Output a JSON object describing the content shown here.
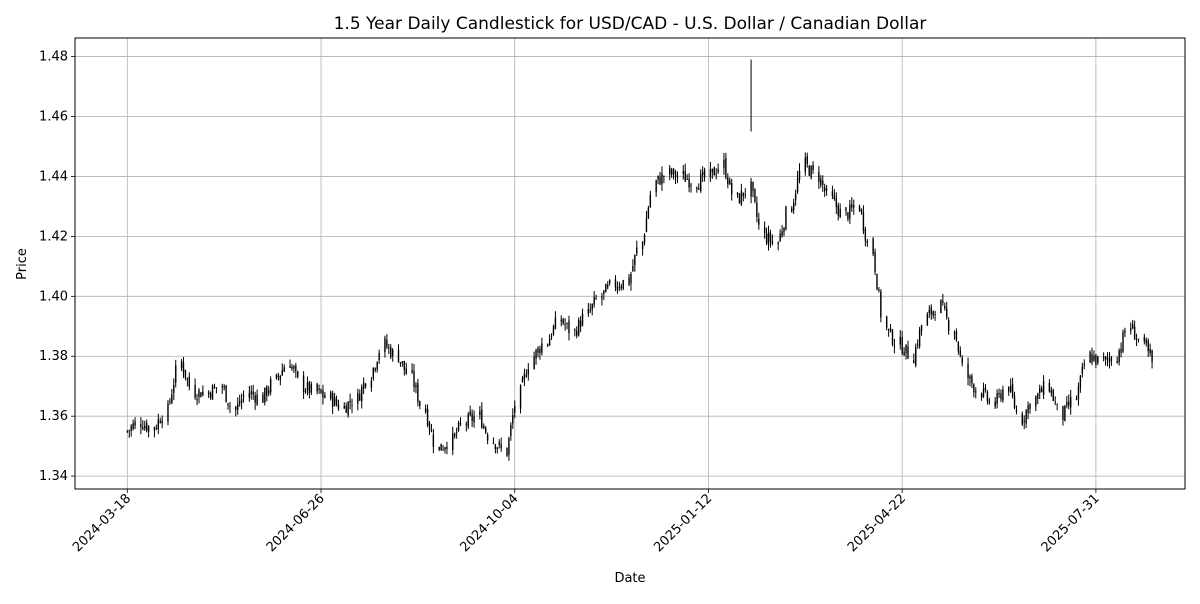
{
  "chart_data": {
    "type": "candlestick",
    "title": "1.5 Year Daily Candlestick for USD/CAD - U.S. Dollar / Canadian Dollar",
    "xlabel": "Date",
    "ylabel": "Price",
    "x_ticks": [
      "2024-03-18",
      "2024-06-26",
      "2024-10-04",
      "2025-01-12",
      "2025-04-22",
      "2025-07-31"
    ],
    "y_ticks": [
      "1.34",
      "1.36",
      "1.38",
      "1.40",
      "1.42",
      "1.44",
      "1.46",
      "1.48"
    ],
    "xlim": [
      "2024-02-20",
      "2025-09-15"
    ],
    "ylim": [
      1.3357,
      1.4862
    ],
    "grid": true,
    "colors": {
      "candle": "#000000",
      "grid": "#b0b0b0"
    },
    "series": {
      "name": "",
      "date_weekly": [
        "2024-03-18",
        "2024-03-25",
        "2024-04-01",
        "2024-04-08",
        "2024-04-15",
        "2024-04-22",
        "2024-04-29",
        "2024-05-06",
        "2024-05-13",
        "2024-05-20",
        "2024-05-27",
        "2024-06-03",
        "2024-06-10",
        "2024-06-17",
        "2024-06-24",
        "2024-07-01",
        "2024-07-08",
        "2024-07-15",
        "2024-07-22",
        "2024-07-29",
        "2024-08-05",
        "2024-08-12",
        "2024-08-19",
        "2024-08-26",
        "2024-09-02",
        "2024-09-09",
        "2024-09-16",
        "2024-09-23",
        "2024-09-30",
        "2024-10-07",
        "2024-10-14",
        "2024-10-21",
        "2024-10-28",
        "2024-11-04",
        "2024-11-11",
        "2024-11-18",
        "2024-11-25",
        "2024-12-02",
        "2024-12-09",
        "2024-12-16",
        "2024-12-23",
        "2024-12-30",
        "2025-01-06",
        "2025-01-13",
        "2025-01-20",
        "2025-01-27",
        "2025-02-03",
        "2025-02-10",
        "2025-02-17",
        "2025-02-24",
        "2025-03-03",
        "2025-03-10",
        "2025-03-17",
        "2025-03-24",
        "2025-03-31",
        "2025-04-07",
        "2025-04-14",
        "2025-04-21",
        "2025-04-28",
        "2025-05-05",
        "2025-05-12",
        "2025-05-19",
        "2025-05-26",
        "2025-06-02",
        "2025-06-09",
        "2025-06-16",
        "2025-06-23",
        "2025-06-30",
        "2025-07-07",
        "2025-07-14",
        "2025-07-21",
        "2025-07-28",
        "2025-08-04",
        "2025-08-11",
        "2025-08-18",
        "2025-08-25",
        "2025-09-01"
      ],
      "close_weekly": [
        1.355,
        1.358,
        1.356,
        1.362,
        1.378,
        1.368,
        1.368,
        1.37,
        1.362,
        1.368,
        1.366,
        1.372,
        1.378,
        1.37,
        1.368,
        1.366,
        1.363,
        1.366,
        1.374,
        1.384,
        1.38,
        1.373,
        1.362,
        1.349,
        1.352,
        1.358,
        1.36,
        1.352,
        1.348,
        1.368,
        1.38,
        1.385,
        1.392,
        1.388,
        1.394,
        1.4,
        1.404,
        1.405,
        1.418,
        1.438,
        1.441,
        1.44,
        1.438,
        1.44,
        1.444,
        1.432,
        1.436,
        1.42,
        1.418,
        1.43,
        1.444,
        1.44,
        1.432,
        1.427,
        1.43,
        1.415,
        1.389,
        1.384,
        1.38,
        1.393,
        1.397,
        1.389,
        1.373,
        1.368,
        1.364,
        1.37,
        1.359,
        1.366,
        1.37,
        1.36,
        1.366,
        1.38,
        1.378,
        1.38,
        1.39,
        1.384,
        1.376
      ]
    }
  }
}
